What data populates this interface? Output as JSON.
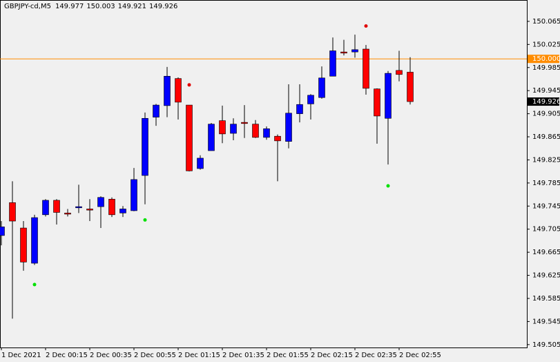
{
  "chart_data": {
    "type": "candlestick",
    "title": "GBPJPY-cd,M5",
    "header_ohlc": [
      149.977,
      150.003,
      149.921,
      149.926
    ],
    "categories": [
      "1 Dec 2021",
      null,
      null,
      null,
      "2 Dec 00:15",
      null,
      null,
      null,
      "2 Dec 00:35",
      null,
      null,
      null,
      "2 Dec 00:55",
      null,
      null,
      null,
      "2 Dec 01:15",
      null,
      null,
      null,
      "2 Dec 01:35",
      null,
      null,
      null,
      "2 Dec 01:55",
      null,
      null,
      null,
      "2 Dec 02:15",
      null,
      null,
      null,
      "2 Dec 02:35",
      null,
      null,
      null,
      "2 Dec 02:55",
      null
    ],
    "open": [
      149.694,
      149.751,
      149.707,
      149.646,
      149.73,
      149.755,
      149.733,
      149.742,
      149.74,
      149.744,
      149.757,
      149.733,
      149.737,
      149.798,
      149.899,
      149.919,
      149.966,
      149.92,
      149.81,
      149.841,
      149.893,
      149.871,
      149.89,
      149.887,
      149.864,
      149.866,
      149.857,
      149.905,
      149.922,
      149.933,
      149.97,
      150.012,
      150.012,
      150.017,
      149.948,
      149.897,
      149.98,
      149.977
    ],
    "high": [
      149.719,
      149.788,
      149.719,
      149.73,
      149.757,
      149.757,
      149.74,
      149.782,
      149.757,
      149.762,
      149.76,
      149.745,
      149.811,
      149.907,
      149.922,
      149.986,
      149.968,
      149.92,
      149.833,
      149.889,
      149.919,
      149.897,
      149.92,
      149.894,
      149.883,
      149.869,
      149.956,
      149.956,
      149.939,
      149.987,
      150.037,
      150.033,
      150.042,
      150.024,
      149.949,
      149.979,
      150.014,
      150.003
    ],
    "low": [
      149.677,
      149.55,
      149.633,
      149.643,
      149.727,
      149.713,
      149.727,
      149.733,
      149.719,
      149.707,
      149.726,
      149.726,
      149.736,
      149.748,
      149.884,
      149.899,
      149.895,
      149.805,
      149.808,
      149.841,
      149.854,
      149.859,
      149.863,
      149.863,
      149.86,
      149.788,
      149.845,
      149.89,
      149.895,
      149.931,
      149.97,
      150.006,
      150.002,
      149.938,
      149.853,
      149.817,
      149.961,
      149.921
    ],
    "close": [
      149.709,
      149.719,
      149.648,
      149.725,
      149.755,
      149.734,
      149.731,
      149.744,
      149.738,
      149.76,
      149.73,
      149.74,
      149.791,
      149.897,
      149.92,
      149.97,
      149.925,
      149.806,
      149.828,
      149.887,
      149.87,
      149.887,
      149.888,
      149.864,
      149.879,
      149.858,
      149.906,
      149.921,
      149.937,
      149.967,
      150.014,
      150.01,
      150.016,
      149.949,
      149.901,
      149.975,
      149.973,
      149.926
    ],
    "bull_color": "#0000ff",
    "bear_color": "#ff0000",
    "fractals_up": [
      null,
      null,
      null,
      null,
      null,
      null,
      null,
      null,
      null,
      null,
      null,
      null,
      null,
      null,
      null,
      null,
      null,
      149.955,
      null,
      null,
      null,
      null,
      null,
      null,
      null,
      null,
      null,
      null,
      null,
      null,
      null,
      null,
      null,
      150.057,
      null,
      null,
      null,
      null
    ],
    "fractals_up_color": "#e00000",
    "fractals_down": [
      null,
      null,
      null,
      149.609,
      null,
      null,
      null,
      null,
      null,
      null,
      null,
      null,
      null,
      149.721,
      null,
      null,
      null,
      null,
      null,
      null,
      null,
      null,
      null,
      null,
      null,
      null,
      null,
      null,
      null,
      null,
      null,
      null,
      null,
      null,
      null,
      149.78,
      null,
      null
    ],
    "fractals_down_color": "#00e000",
    "hline": {
      "value": 150,
      "label": "150.000",
      "color": "#ff8c00"
    },
    "last_price": 149.926,
    "ylim": [
      149.5,
      150.102
    ],
    "yticks": [
      150.065,
      150.025,
      149.985,
      149.945,
      149.905,
      149.865,
      149.825,
      149.785,
      149.745,
      149.705,
      149.665,
      149.625,
      149.585,
      149.545,
      149.505
    ]
  }
}
